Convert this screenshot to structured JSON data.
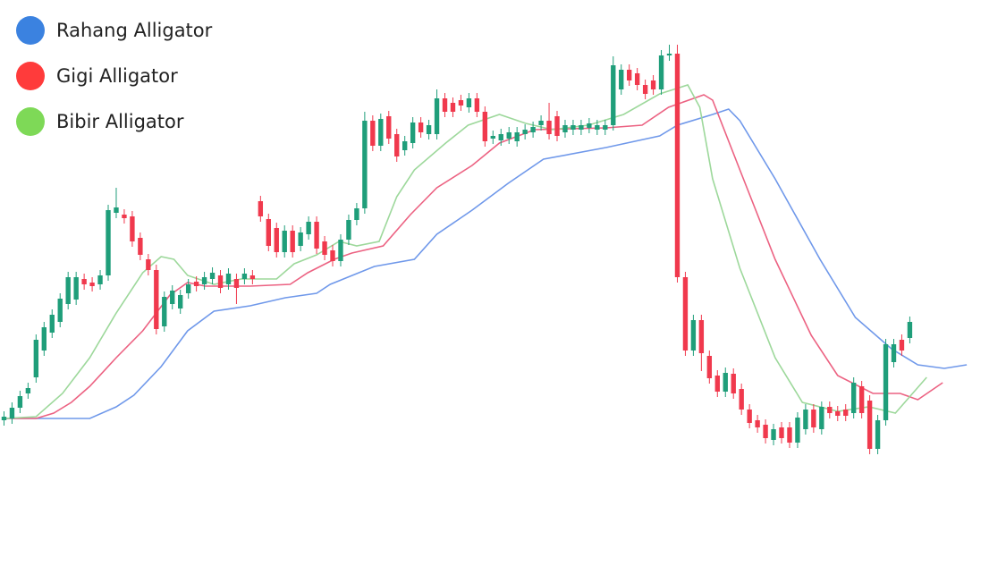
{
  "chart_data": {
    "type": "candlestick",
    "xlim": [
      -0.5,
      125
    ],
    "ylim": [
      67,
      700
    ],
    "up_color": "#1f9e7a",
    "down_color": "#f0394d",
    "open": [
      230,
      232,
      244,
      260,
      278,
      308,
      328,
      340,
      360,
      365,
      388,
      384,
      382,
      392,
      462,
      460,
      458,
      434,
      410,
      398,
      335,
      360,
      355,
      372,
      385,
      382,
      388,
      392,
      382,
      388,
      388,
      392,
      475,
      455,
      445,
      418,
      442,
      425,
      438,
      452,
      430,
      420,
      408,
      432,
      454,
      467,
      565,
      537,
      570,
      550,
      532,
      540,
      563,
      550,
      550,
      590,
      585,
      588,
      580,
      590,
      575,
      545,
      543,
      545,
      542,
      550,
      552,
      560,
      565,
      570,
      552,
      555,
      555,
      557,
      555,
      555,
      560,
      600,
      622,
      618,
      605,
      610,
      600,
      638,
      640,
      390,
      308,
      342,
      302,
      280,
      262,
      282,
      265,
      242,
      230,
      225,
      208,
      222,
      222,
      205,
      220,
      242,
      220,
      245,
      240,
      242,
      238,
      268,
      252,
      198,
      230,
      295,
      320,
      322
    ],
    "high": [
      240,
      250,
      263,
      272,
      326,
      340,
      354,
      372,
      396,
      396,
      394,
      390,
      398,
      471,
      490,
      466,
      464,
      440,
      416,
      404,
      374,
      381,
      376,
      388,
      391,
      396,
      401,
      398,
      400,
      394,
      400,
      398,
      481,
      461,
      451,
      448,
      448,
      446,
      458,
      458,
      436,
      426,
      438,
      460,
      473,
      575,
      571,
      573,
      576,
      556,
      548,
      569,
      569,
      566,
      600,
      596,
      591,
      594,
      596,
      596,
      581,
      554,
      556,
      558,
      558,
      561,
      564,
      571,
      585,
      576,
      566,
      566,
      566,
      568,
      566,
      566,
      637,
      628,
      628,
      624,
      611,
      616,
      644,
      650,
      650,
      396,
      348,
      348,
      308,
      286,
      289,
      288,
      271,
      248,
      236,
      231,
      226,
      228,
      228,
      239,
      248,
      248,
      251,
      251,
      246,
      248,
      278,
      274,
      258,
      236,
      321,
      321,
      326,
      346
    ],
    "low": [
      224,
      226,
      238,
      254,
      272,
      302,
      322,
      334,
      354,
      359,
      376,
      374,
      376,
      386,
      456,
      450,
      424,
      409,
      392,
      326,
      329,
      354,
      349,
      366,
      374,
      376,
      382,
      372,
      376,
      360,
      382,
      382,
      452,
      419,
      412,
      412,
      412,
      419,
      432,
      416,
      409,
      402,
      402,
      426,
      448,
      461,
      531,
      531,
      539,
      519,
      526,
      534,
      546,
      544,
      544,
      569,
      569,
      576,
      574,
      569,
      536,
      539,
      537,
      539,
      536,
      544,
      546,
      554,
      544,
      542,
      546,
      549,
      549,
      551,
      549,
      549,
      554,
      594,
      604,
      599,
      589,
      594,
      594,
      632,
      384,
      302,
      302,
      285,
      271,
      256,
      256,
      254,
      236,
      221,
      216,
      204,
      202,
      204,
      199,
      199,
      214,
      216,
      214,
      232,
      229,
      229,
      232,
      232,
      192,
      192,
      224,
      289,
      302,
      316
    ],
    "close": [
      234,
      244,
      257,
      266,
      320,
      334,
      348,
      366,
      390,
      390,
      382,
      380,
      392,
      465,
      468,
      456,
      430,
      415,
      398,
      332,
      368,
      375,
      370,
      382,
      380,
      390,
      395,
      378,
      394,
      378,
      394,
      388,
      458,
      425,
      418,
      442,
      418,
      440,
      452,
      422,
      415,
      408,
      432,
      454,
      467,
      565,
      537,
      567,
      545,
      525,
      542,
      563,
      552,
      560,
      590,
      575,
      575,
      582,
      590,
      575,
      542,
      548,
      550,
      552,
      552,
      555,
      558,
      565,
      550,
      548,
      560,
      560,
      560,
      562,
      560,
      560,
      627,
      622,
      610,
      605,
      595,
      600,
      638,
      640,
      390,
      308,
      342,
      305,
      277,
      262,
      283,
      260,
      242,
      227,
      222,
      210,
      220,
      210,
      205,
      233,
      242,
      222,
      245,
      238,
      235,
      235,
      272,
      238,
      198,
      230,
      315,
      315,
      308,
      340
    ],
    "series": [
      {
        "name": "Rahang Alligator",
        "color": "#3b82e0",
        "line_color": "#6f98ea",
        "x": [
          0,
          10.7,
          14,
          16.2,
          19.6,
          22.9,
          26.2,
          30.7,
          35.1,
          39,
          40.7,
          46.2,
          51.2,
          54,
          58.4,
          62.9,
          67.3,
          75.1,
          81.8,
          84,
          88.4,
          90.4,
          91.8,
          96.2,
          101.8,
          106.2,
          110.7,
          114,
          117.3,
          120.1
        ],
        "values": [
          232,
          232,
          245,
          258,
          290,
          330,
          352,
          358,
          367,
          372,
          382,
          402,
          410,
          438,
          465,
          495,
          522,
          535,
          548,
          560,
          572,
          578,
          565,
          500,
          410,
          345,
          310,
          292,
          288,
          292
        ]
      },
      {
        "name": "Gigi Alligator",
        "color": "#ff3b3b",
        "line_color": "#ec6282",
        "x": [
          0,
          4,
          6.2,
          8.4,
          10.7,
          14,
          17.3,
          20.7,
          22.9,
          25.1,
          30.7,
          35.7,
          37.9,
          41.2,
          43.4,
          47.3,
          50.7,
          54,
          58.4,
          61.8,
          66.2,
          75.1,
          79.6,
          82.9,
          87.3,
          88.4,
          91.8,
          96.2,
          100.7,
          104,
          108.4,
          111.8,
          114,
          117.1
        ],
        "values": [
          232,
          232,
          238,
          250,
          268,
          300,
          330,
          370,
          384,
          380,
          380,
          382,
          395,
          410,
          417,
          425,
          460,
          490,
          515,
          540,
          555,
          557,
          560,
          580,
          594,
          588,
          510,
          410,
          325,
          280,
          260,
          260,
          253,
          272
        ]
      },
      {
        "name": "Bibir Alligator",
        "color": "#7ed957",
        "line_color": "#9dd89b",
        "x": [
          0,
          4,
          7.3,
          10.7,
          14,
          17.3,
          19.6,
          21.2,
          22.9,
          26.2,
          29.6,
          34,
          36.2,
          39,
          41.8,
          44,
          46.8,
          49,
          51.2,
          55.1,
          57.9,
          61.8,
          65.1,
          68.4,
          72.9,
          77.3,
          81.8,
          85.3,
          86.8,
          88.4,
          91.8,
          96.2,
          99.6,
          104,
          107.9,
          111.2,
          115.1
        ],
        "values": [
          232,
          234,
          260,
          300,
          350,
          395,
          413,
          410,
          392,
          382,
          388,
          388,
          405,
          415,
          430,
          425,
          430,
          480,
          510,
          540,
          560,
          572,
          562,
          555,
          560,
          572,
          595,
          605,
          580,
          500,
          400,
          300,
          250,
          240,
          245,
          238,
          278
        ]
      }
    ]
  }
}
